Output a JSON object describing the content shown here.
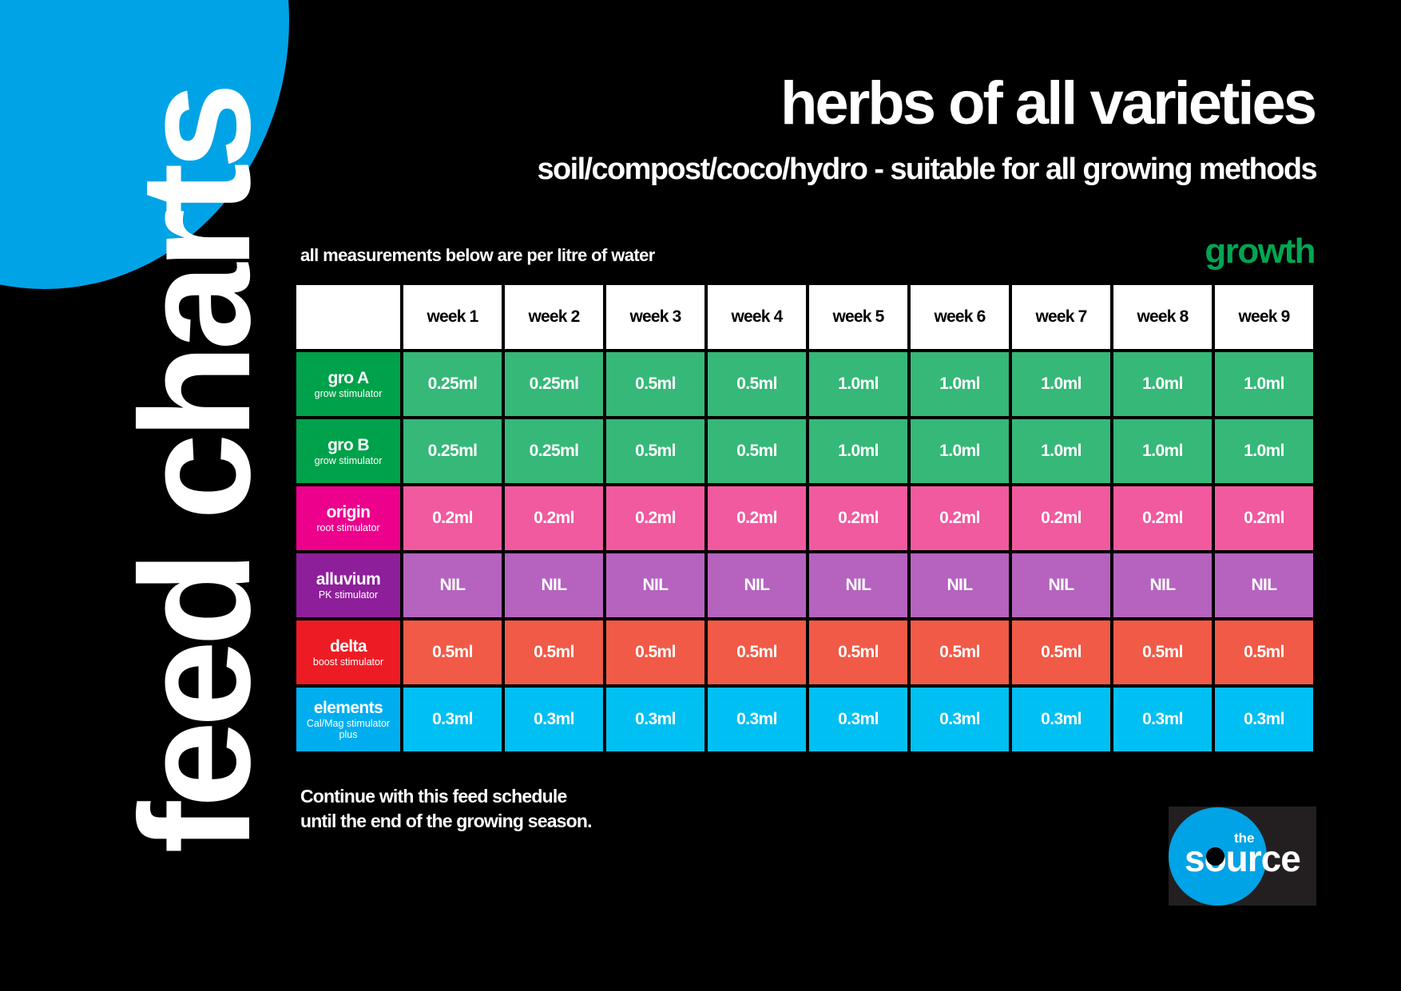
{
  "vertical_title": "feed charts",
  "title": "herbs of all varieties",
  "subtitle": "soil/compost/coco/hydro - suitable for all growing methods",
  "note": "all measurements below are per litre of water",
  "phase": "growth",
  "colors": {
    "accent_blue": "#00a3e6",
    "phase_green": "#00a651"
  },
  "table": {
    "weeks": [
      "week 1",
      "week 2",
      "week 3",
      "week 4",
      "week 5",
      "week 6",
      "week 7",
      "week 8",
      "week 9"
    ],
    "rows": [
      {
        "name": "gro A",
        "sub": "grow stimulator",
        "head_color": "#00a14b",
        "cell_color": "#36b878",
        "values": [
          "0.25ml",
          "0.25ml",
          "0.5ml",
          "0.5ml",
          "1.0ml",
          "1.0ml",
          "1.0ml",
          "1.0ml",
          "1.0ml"
        ]
      },
      {
        "name": "gro B",
        "sub": "grow stimulator",
        "head_color": "#00a14b",
        "cell_color": "#36b878",
        "values": [
          "0.25ml",
          "0.25ml",
          "0.5ml",
          "0.5ml",
          "1.0ml",
          "1.0ml",
          "1.0ml",
          "1.0ml",
          "1.0ml"
        ]
      },
      {
        "name": "origin",
        "sub": "root stimulator",
        "head_color": "#ec008c",
        "cell_color": "#f15a9f",
        "values": [
          "0.2ml",
          "0.2ml",
          "0.2ml",
          "0.2ml",
          "0.2ml",
          "0.2ml",
          "0.2ml",
          "0.2ml",
          "0.2ml"
        ]
      },
      {
        "name": "alluvium",
        "sub": "PK stimulator",
        "head_color": "#8e1f9b",
        "cell_color": "#b563bf",
        "values": [
          "NIL",
          "NIL",
          "NIL",
          "NIL",
          "NIL",
          "NIL",
          "NIL",
          "NIL",
          "NIL"
        ]
      },
      {
        "name": "delta",
        "sub": "boost stimulator",
        "head_color": "#ed1c24",
        "cell_color": "#f15a47",
        "values": [
          "0.5ml",
          "0.5ml",
          "0.5ml",
          "0.5ml",
          "0.5ml",
          "0.5ml",
          "0.5ml",
          "0.5ml",
          "0.5ml"
        ]
      },
      {
        "name": "elements",
        "sub": "Cal/Mag stimulator plus",
        "head_color": "#00aeef",
        "cell_color": "#00bff2",
        "values": [
          "0.3ml",
          "0.3ml",
          "0.3ml",
          "0.3ml",
          "0.3ml",
          "0.3ml",
          "0.3ml",
          "0.3ml",
          "0.3ml"
        ]
      }
    ]
  },
  "footer": {
    "line1": "Continue with this feed schedule",
    "line2": "until the end of the growing season."
  },
  "logo": {
    "small": "the",
    "word": "source"
  }
}
